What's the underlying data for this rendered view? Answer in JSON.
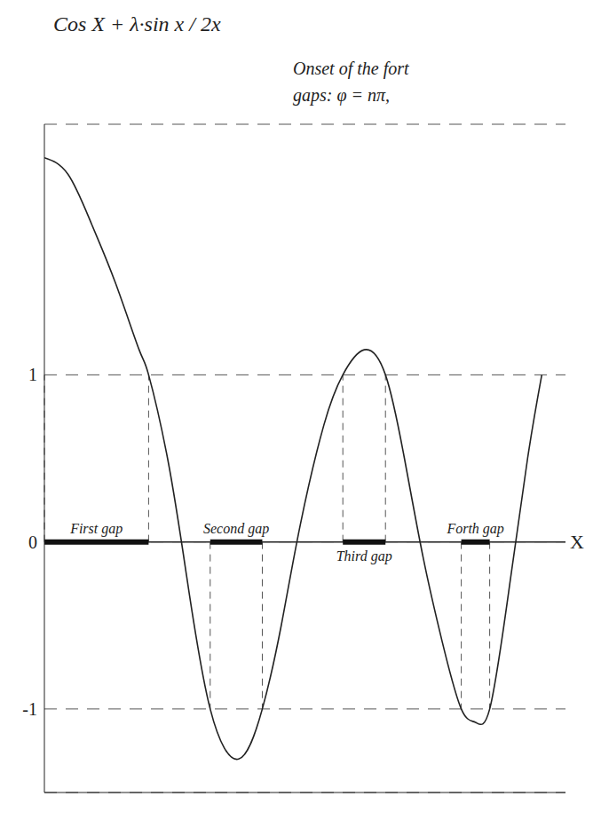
{
  "chart_data": {
    "type": "line",
    "title": "Cos X + λ·sin x / 2x",
    "annotation": [
      "Onset of the fort",
      "gaps: φ = nπ,"
    ],
    "x_label": "X",
    "x": [
      0,
      0.5,
      1,
      1.5,
      2,
      2.2,
      2.6,
      3,
      3.5,
      4.1,
      4.6,
      5,
      5.4,
      5.9,
      6.3,
      6.75,
      7.2,
      7.6,
      8,
      8.4,
      8.8,
      9.1,
      9.4,
      9.8,
      10.2,
      10.5
    ],
    "values": [
      2.3,
      2.2,
      1.9,
      1.55,
      1.15,
      1.0,
      0.5,
      -0.2,
      -1.0,
      -1.3,
      -1.0,
      -0.5,
      0.1,
      0.7,
      1.0,
      1.15,
      1.0,
      0.5,
      -0.1,
      -0.6,
      -1.0,
      -1.08,
      -1.0,
      -0.3,
      0.5,
      1.0
    ],
    "xlim": [
      0,
      11
    ],
    "ylim": [
      -1.5,
      2.5
    ],
    "yticks": [
      -1,
      0,
      1
    ],
    "grid": true,
    "tick_labels": "y",
    "color": "#222222",
    "gaps": [
      {
        "label": "First gap",
        "x": [
          0,
          2.2
        ]
      },
      {
        "label": "Second gap",
        "x": [
          3.5,
          4.6
        ]
      },
      {
        "label": "Third gap",
        "x": [
          6.3,
          7.2
        ]
      },
      {
        "label": "Forth gap",
        "x": [
          8.8,
          9.4
        ]
      }
    ]
  }
}
